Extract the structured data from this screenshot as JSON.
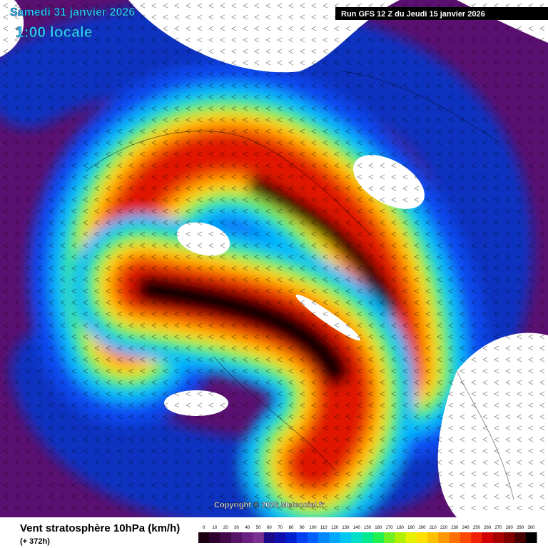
{
  "header": {
    "date": "Samedi 31 janvier 2026",
    "time": "1:00 locale",
    "run": "Run GFS 12 Z du Jeudi 15 janvier 2026"
  },
  "map": {
    "copyright": "Copyright © 2026 Meteociel.fr"
  },
  "footer": {
    "title": "Vent stratosphère 10hPa (km/h)",
    "lead": "(+ 372h)"
  },
  "colorbar": {
    "entries": [
      {
        "value": 0,
        "color": "#1a0012"
      },
      {
        "value": 10,
        "color": "#2e0030"
      },
      {
        "value": 20,
        "color": "#42084a"
      },
      {
        "value": 30,
        "color": "#561466"
      },
      {
        "value": 40,
        "color": "#6a2080"
      },
      {
        "value": 50,
        "color": "#7a3090"
      },
      {
        "value": 60,
        "color": "#1a0a8a"
      },
      {
        "value": 70,
        "color": "#1010b0"
      },
      {
        "value": 80,
        "color": "#0020d0"
      },
      {
        "value": 90,
        "color": "#0040f0"
      },
      {
        "value": 100,
        "color": "#0060ff"
      },
      {
        "value": 110,
        "color": "#0088ff"
      },
      {
        "value": 120,
        "color": "#00a8ff"
      },
      {
        "value": 130,
        "color": "#00c8f0"
      },
      {
        "value": 140,
        "color": "#00e0c8"
      },
      {
        "value": 150,
        "color": "#00e890"
      },
      {
        "value": 160,
        "color": "#20f050"
      },
      {
        "value": 170,
        "color": "#70f020"
      },
      {
        "value": 180,
        "color": "#b0f000"
      },
      {
        "value": 190,
        "color": "#e8f000"
      },
      {
        "value": 200,
        "color": "#ffe000"
      },
      {
        "value": 210,
        "color": "#ffc000"
      },
      {
        "value": 220,
        "color": "#ff9800"
      },
      {
        "value": 230,
        "color": "#ff7000"
      },
      {
        "value": 240,
        "color": "#ff4800"
      },
      {
        "value": 250,
        "color": "#f02000"
      },
      {
        "value": 260,
        "color": "#d00000"
      },
      {
        "value": 270,
        "color": "#a80000"
      },
      {
        "value": 280,
        "color": "#800000"
      },
      {
        "value": 290,
        "color": "#480000"
      },
      {
        "value": 300,
        "color": "#000000"
      }
    ]
  }
}
